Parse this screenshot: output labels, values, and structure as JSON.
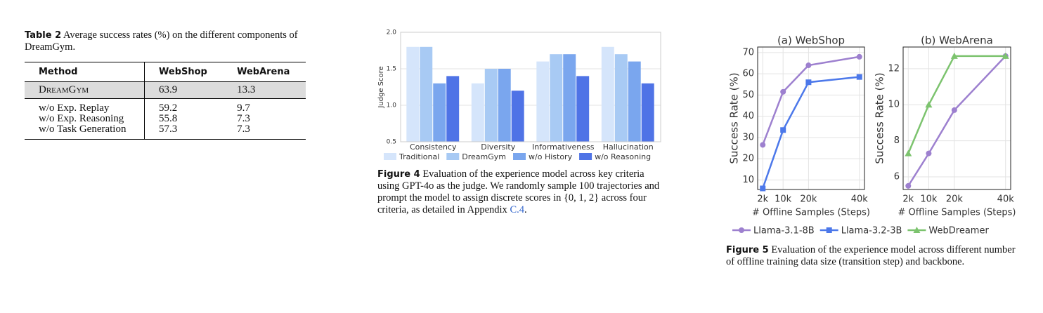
{
  "table": {
    "label": "Table 2",
    "caption": "Average success rates (%) on the different components of DreamGym.",
    "header": [
      "Method",
      "WebShop",
      "WebArena"
    ],
    "rows": [
      [
        "DreamGym",
        63.9,
        13.3
      ],
      [
        "w/o Exp. Replay",
        59.2,
        9.7
      ],
      [
        "w/o Exp. Reasoning",
        55.8,
        7.3
      ],
      [
        "w/o Task Generation",
        57.3,
        7.3
      ]
    ]
  },
  "figure4": {
    "label": "Figure 4",
    "text": "Evaluation of the experience model across key criteria using GPT-4o as the judge. We randomly sample 100 trajectories and prompt the model to assign discrete scores in {0, 1, 2} across four criteria, as detailed in Appendix",
    "link": "C.4",
    "end": "."
  },
  "figure5": {
    "label": "Figure 5",
    "text": "Evaluation of the experience model across different number of offline training data size (transition step) and backbone."
  },
  "chart_data": [
    {
      "type": "bar",
      "ylabel": "Judge Score",
      "categories": [
        "Consistency",
        "Diversity",
        "Informativeness",
        "Hallucination"
      ],
      "series": [
        {
          "name": "Traditional",
          "color": "#d5e5fb",
          "values": [
            1.8,
            1.3,
            1.6,
            1.8
          ]
        },
        {
          "name": "DreamGym",
          "color": "#a8caf4",
          "values": [
            1.8,
            1.5,
            1.7,
            1.7
          ]
        },
        {
          "name": "w/o History",
          "color": "#7aa6ee",
          "values": [
            1.3,
            1.5,
            1.7,
            1.6
          ]
        },
        {
          "name": "w/o Reasoning",
          "color": "#4f73e6",
          "values": [
            1.4,
            1.2,
            1.4,
            1.3
          ]
        }
      ],
      "ylim": [
        0.5,
        2.0
      ],
      "yticks": [
        0.5,
        {
          "value": 1.0,
          "label": "1.0"
        },
        1.5,
        {
          "value": 2.0,
          "label": "2.0"
        }
      ],
      "grid": true,
      "legend": "bottom"
    },
    {
      "type": "line",
      "title": "(a) WebShop",
      "xlabel": "# Offline Samples (Steps)",
      "ylabel": "Success Rate (%)",
      "x": [
        2000,
        10000,
        20000,
        40000
      ],
      "xlim": [
        0,
        42000
      ],
      "xticks": [
        {
          "value": 2000,
          "label": "2k"
        },
        {
          "value": 10000,
          "label": "10k"
        },
        {
          "value": 20000,
          "label": "20k"
        },
        {
          "value": 40000,
          "label": "40k"
        }
      ],
      "series": [
        {
          "name": "Llama-3.1-8B",
          "color": "#9d80cf",
          "marker": "circle",
          "values": [
            26.5,
            51.5,
            64,
            68
          ]
        },
        {
          "name": "Llama-3.2-3B",
          "color": "#4c78ea",
          "marker": "square",
          "values": [
            6,
            33.5,
            56,
            58.5
          ]
        }
      ],
      "ylim": [
        5.5,
        72.6
      ],
      "yticks": [
        10,
        20,
        30,
        40,
        50,
        60,
        70
      ],
      "grid": true
    },
    {
      "type": "line",
      "title": "(b) WebArena",
      "xlabel": "# Offline Samples (Steps)",
      "ylabel": "Success Rate (%)",
      "x": [
        2000,
        10000,
        20000,
        40000
      ],
      "xlim": [
        0,
        42000
      ],
      "xticks": [
        {
          "value": 2000,
          "label": "2k"
        },
        {
          "value": 10000,
          "label": "10k"
        },
        {
          "value": 20000,
          "label": "20k"
        },
        {
          "value": 40000,
          "label": "40k"
        }
      ],
      "series": [
        {
          "name": "Llama-3.1-8B",
          "color": "#9d80cf",
          "marker": "circle",
          "values": [
            5.5,
            7.3,
            9.7,
            12.7
          ]
        },
        {
          "name": "WebDreamer",
          "color": "#7cc36e",
          "marker": "triangle",
          "values": [
            7.3,
            10,
            12.7,
            12.7
          ]
        }
      ],
      "ylim": [
        5.3,
        13.2
      ],
      "yticks": [
        6,
        8,
        10,
        12
      ],
      "grid": true,
      "legend": "bottom"
    }
  ]
}
